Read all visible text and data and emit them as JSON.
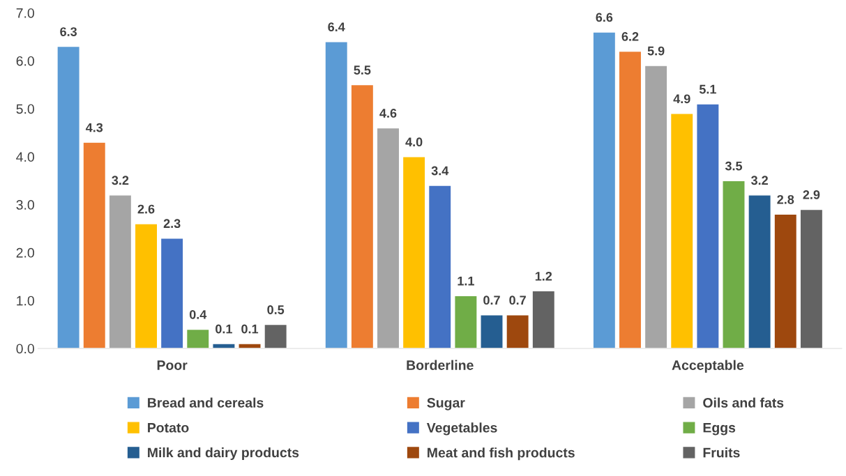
{
  "chart_data": {
    "type": "bar",
    "categories": [
      "Poor",
      "Borderline",
      "Acceptable"
    ],
    "series": [
      {
        "name": "Bread and cereals",
        "color": "#5b9bd5",
        "values": [
          6.3,
          6.4,
          6.6
        ],
        "value_labels": [
          "6.3",
          "6.4",
          "6.6"
        ]
      },
      {
        "name": "Sugar",
        "color": "#ed7d31",
        "values": [
          4.3,
          5.5,
          6.2
        ],
        "value_labels": [
          "4.3",
          "5.5",
          "6.2"
        ]
      },
      {
        "name": "Oils and fats",
        "color": "#a5a5a5",
        "values": [
          3.2,
          4.6,
          5.9
        ],
        "value_labels": [
          "3.2",
          "4.6",
          "5.9"
        ]
      },
      {
        "name": "Potato",
        "color": "#ffc000",
        "values": [
          2.6,
          4.0,
          4.9
        ],
        "value_labels": [
          "2.6",
          "4.0",
          "4.9"
        ]
      },
      {
        "name": "Vegetables",
        "color": "#4472c4",
        "values": [
          2.3,
          3.4,
          5.1
        ],
        "value_labels": [
          "2.3",
          "3.4",
          "5.1"
        ]
      },
      {
        "name": "Eggs",
        "color": "#70ad47",
        "values": [
          0.4,
          1.1,
          3.5
        ],
        "value_labels": [
          "0.4",
          "1.1",
          "3.5"
        ]
      },
      {
        "name": "Milk and dairy products",
        "color": "#255e91",
        "values": [
          0.1,
          0.7,
          3.2
        ],
        "value_labels": [
          "0.1",
          "0.7",
          "3.2"
        ]
      },
      {
        "name": "Meat and fish products",
        "color": "#9e480e",
        "values": [
          0.1,
          0.7,
          2.8
        ],
        "value_labels": [
          "0.1",
          "0.7",
          "2.8"
        ]
      },
      {
        "name": "Fruits",
        "color": "#636363",
        "values": [
          0.5,
          1.2,
          2.9
        ],
        "value_labels": [
          "0.5",
          "1.2",
          "2.9"
        ]
      }
    ],
    "ylim": [
      0,
      7
    ],
    "yticks": [
      {
        "value": 0,
        "label": "0.0"
      },
      {
        "value": 1,
        "label": "1.0"
      },
      {
        "value": 2,
        "label": "2.0"
      },
      {
        "value": 3,
        "label": "3.0"
      },
      {
        "value": 4,
        "label": "4.0"
      },
      {
        "value": 5,
        "label": "5.0"
      },
      {
        "value": 6,
        "label": "6.0"
      },
      {
        "value": 7,
        "label": "7.0"
      }
    ],
    "grid": false,
    "legend": "bottom"
  }
}
